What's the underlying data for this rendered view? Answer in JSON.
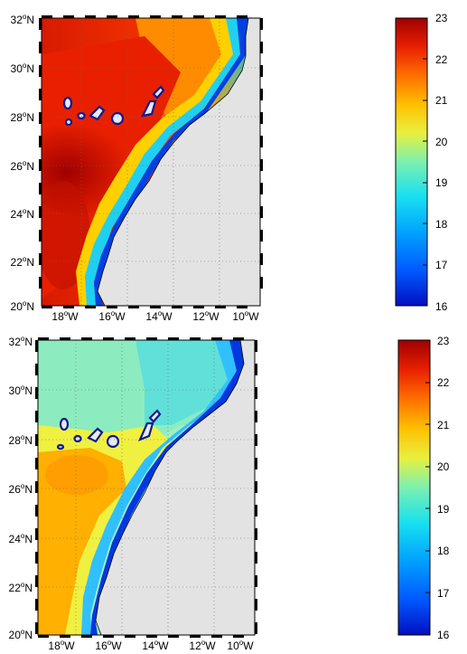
{
  "panels": [
    {
      "id": "top",
      "y_ticks": [
        {
          "deg": "32",
          "hem": "N"
        },
        {
          "deg": "30",
          "hem": "N"
        },
        {
          "deg": "28",
          "hem": "N"
        },
        {
          "deg": "26",
          "hem": "N"
        },
        {
          "deg": "24",
          "hem": "N"
        },
        {
          "deg": "22",
          "hem": "N"
        },
        {
          "deg": "20",
          "hem": "N"
        }
      ],
      "x_ticks": [
        {
          "deg": "18",
          "hem": "W"
        },
        {
          "deg": "16",
          "hem": "W"
        },
        {
          "deg": "14",
          "hem": "W"
        },
        {
          "deg": "12",
          "hem": "W"
        },
        {
          "deg": "10",
          "hem": "W"
        }
      ],
      "colorbar_ticks": [
        "23",
        "22",
        "21",
        "20",
        "19",
        "18",
        "17",
        "16"
      ]
    },
    {
      "id": "bottom",
      "y_ticks": [
        {
          "deg": "32",
          "hem": "N"
        },
        {
          "deg": "30",
          "hem": "N"
        },
        {
          "deg": "28",
          "hem": "N"
        },
        {
          "deg": "26",
          "hem": "N"
        },
        {
          "deg": "24",
          "hem": "N"
        },
        {
          "deg": "22",
          "hem": "N"
        },
        {
          "deg": "20",
          "hem": "N"
        }
      ],
      "x_ticks": [
        {
          "deg": "18",
          "hem": "W"
        },
        {
          "deg": "16",
          "hem": "W"
        },
        {
          "deg": "14",
          "hem": "W"
        },
        {
          "deg": "12",
          "hem": "W"
        },
        {
          "deg": "10",
          "hem": "W"
        }
      ],
      "colorbar_ticks": [
        "23",
        "22",
        "21",
        "20",
        "19",
        "18",
        "17",
        "16"
      ]
    }
  ],
  "colors": {
    "land": "#e3e3e3",
    "island_outline": "#0b1a8c",
    "coast": "#000000"
  },
  "colorscale": [
    "#0010c0",
    "#0058ff",
    "#00a0ff",
    "#18e0f0",
    "#7cf0b0",
    "#e8f040",
    "#ffc000",
    "#ff7000",
    "#e82000",
    "#a00000"
  ]
}
